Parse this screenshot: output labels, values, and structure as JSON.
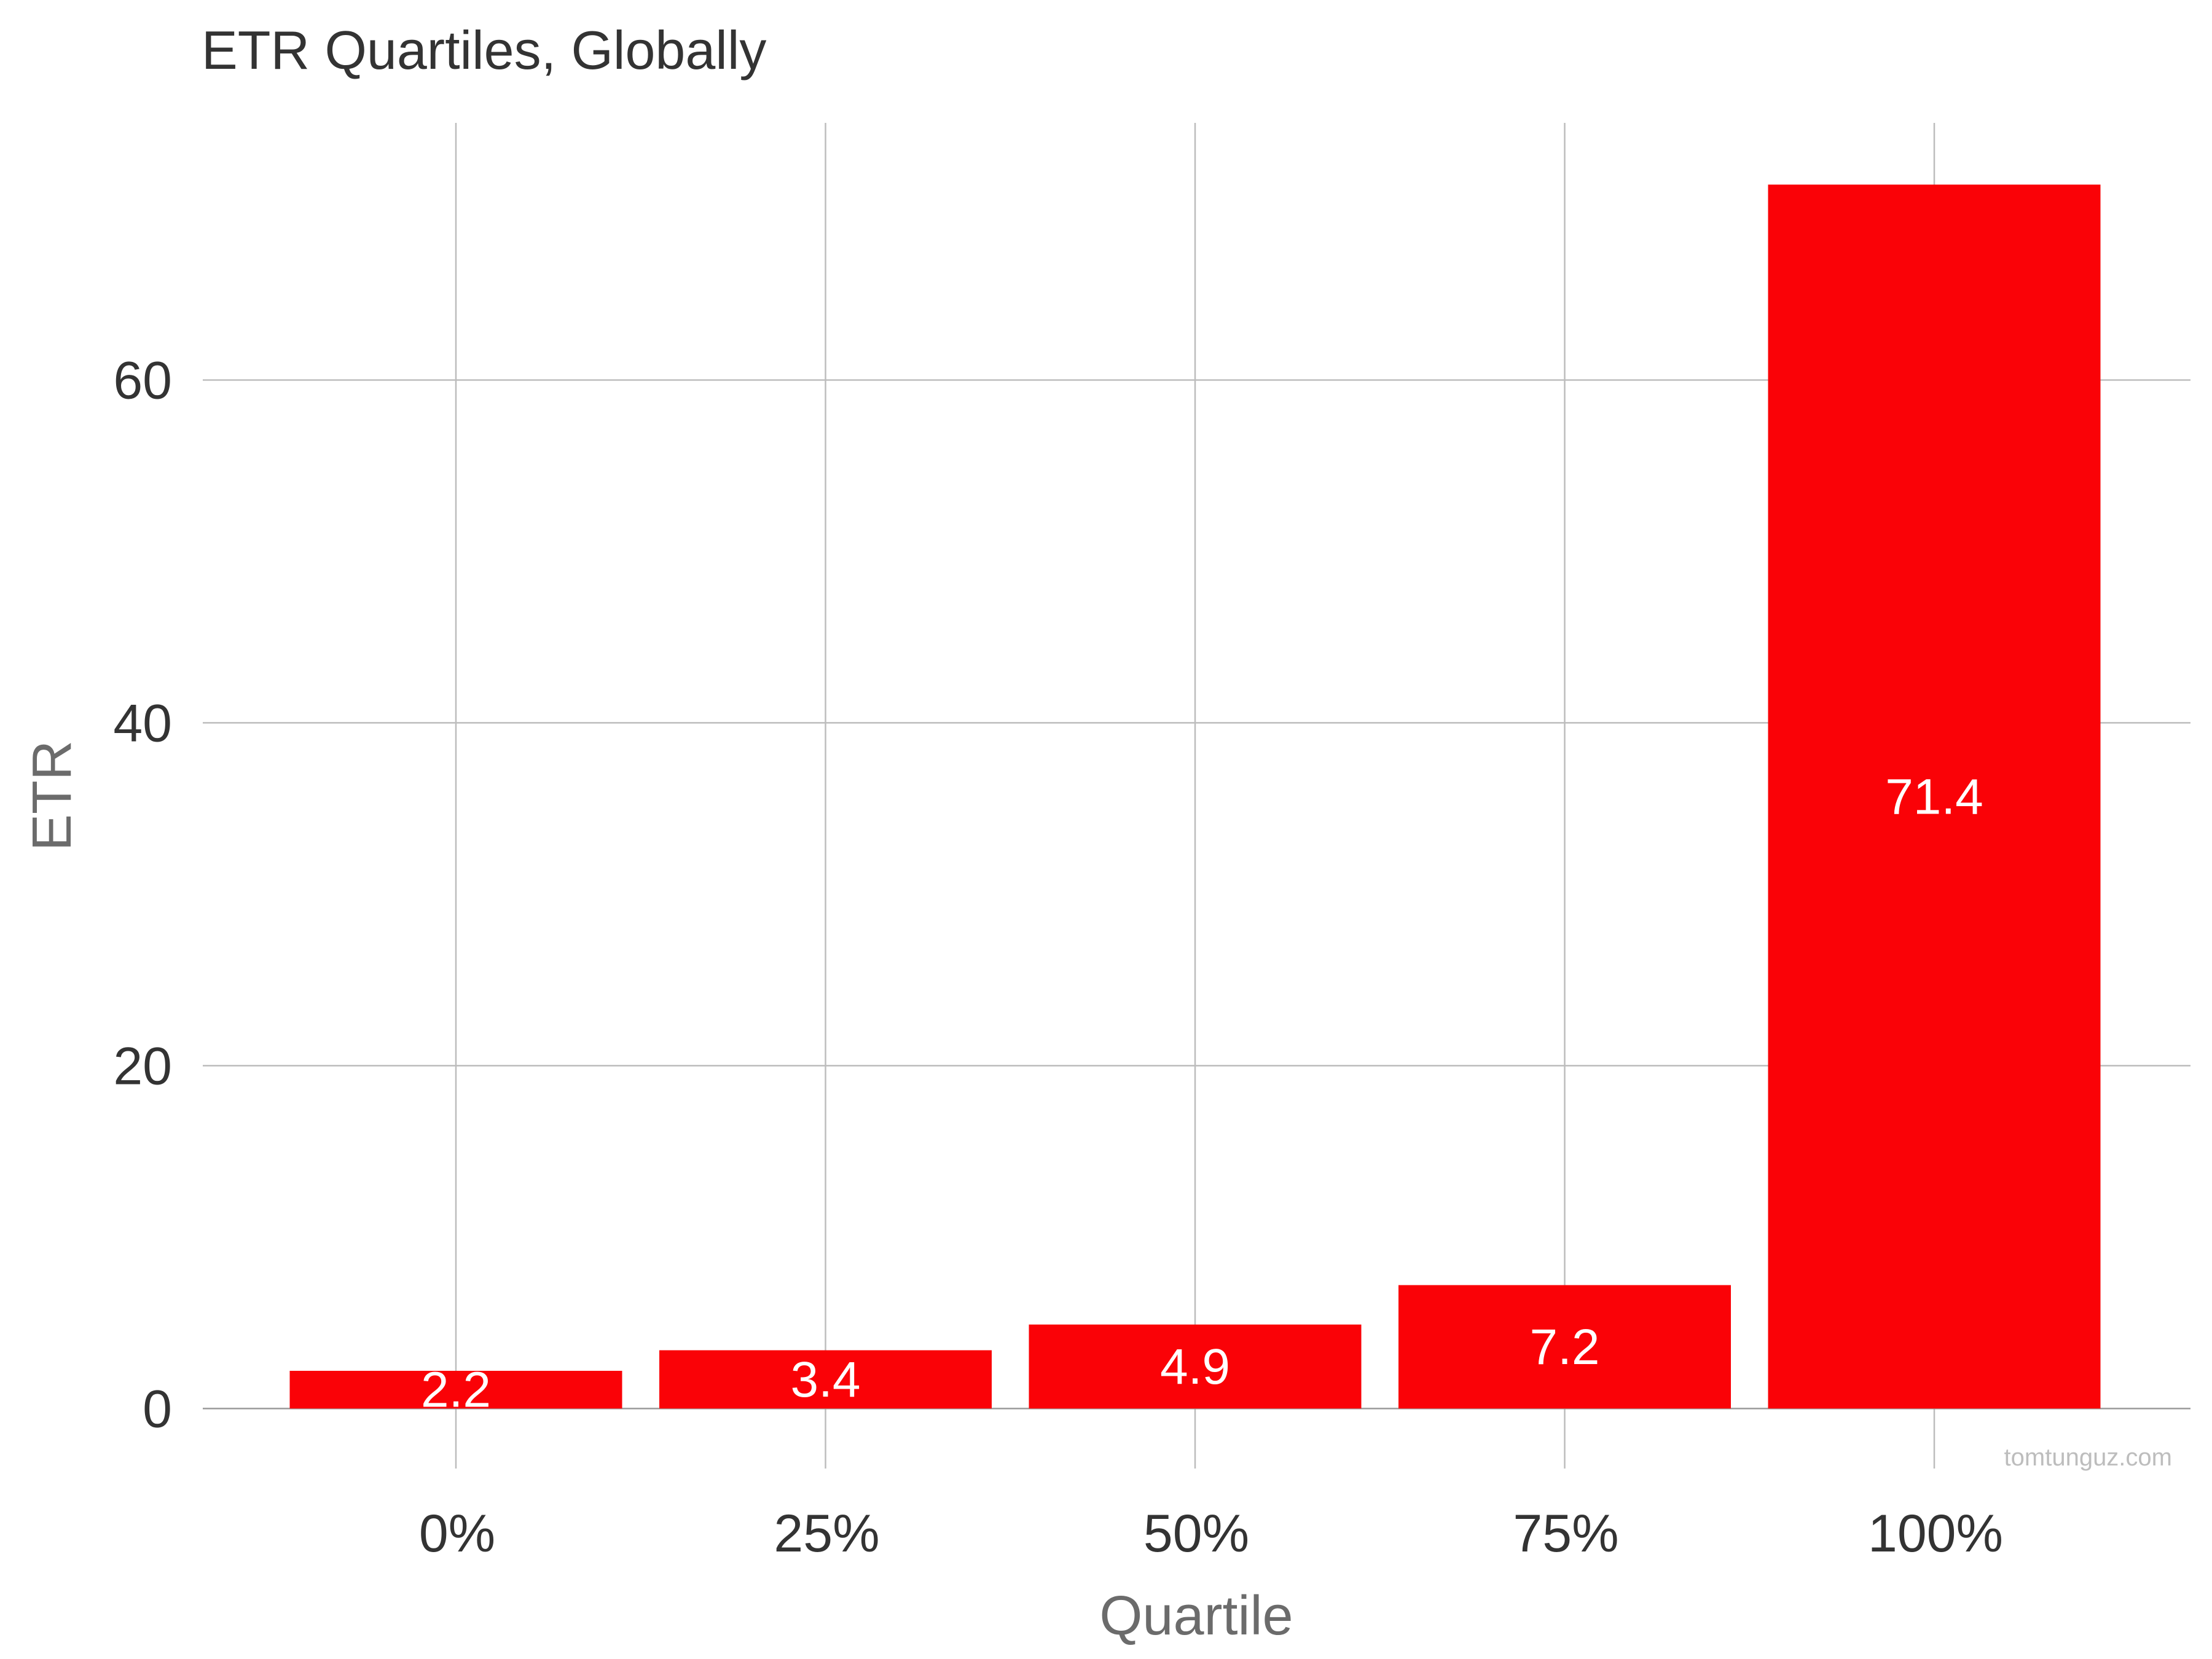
{
  "chart_data": {
    "type": "bar",
    "title": "ETR Quartiles, Globally",
    "xlabel": "Quartile",
    "ylabel": "ETR",
    "categories": [
      "0%",
      "25%",
      "50%",
      "75%",
      "100%"
    ],
    "values": [
      2.2,
      3.4,
      4.9,
      7.2,
      71.4
    ],
    "data_labels": [
      "2.2",
      "3.4",
      "4.9",
      "7.2",
      "71.4"
    ],
    "yticks": [
      0,
      20,
      40,
      60
    ],
    "ytick_labels": [
      "0",
      "20",
      "40",
      "60"
    ],
    "ylim": [
      -3.5,
      75
    ],
    "grid": true,
    "legend": "none",
    "bar_color": "#fa0207",
    "watermark": "tomtunguz.com"
  }
}
